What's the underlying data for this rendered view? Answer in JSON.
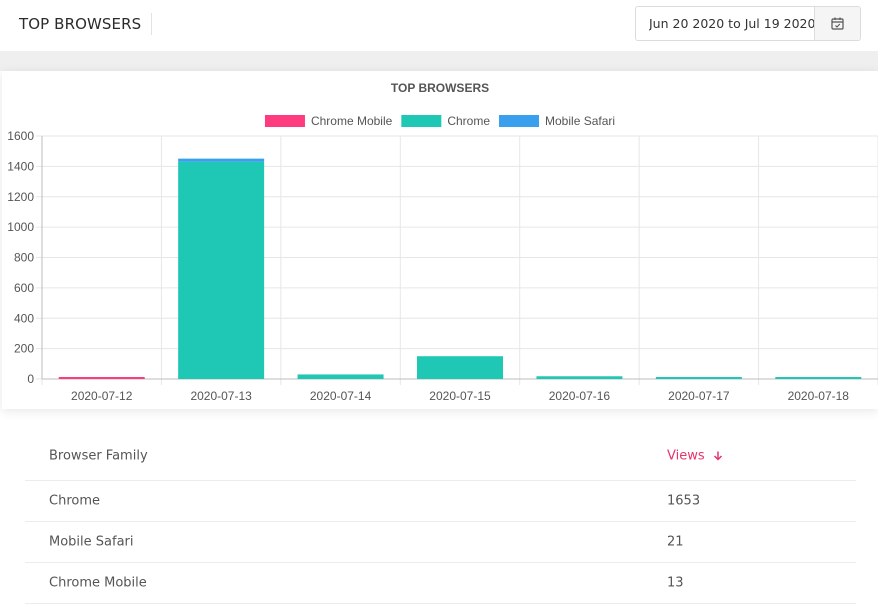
{
  "header": {
    "title": "TOP BROWSERS",
    "date_range_value": "Jun 20 2020 to Jul 19 2020",
    "calendar_icon": "calendar-icon"
  },
  "colors": {
    "Chrome Mobile": "#ff3b7f",
    "Chrome": "#1fc8b4",
    "Mobile Safari": "#3aa0ee"
  },
  "chart_data": {
    "type": "bar",
    "stacked": true,
    "title": "TOP BROWSERS",
    "legend_position": "top",
    "grid": true,
    "categories": [
      "2020-07-12",
      "2020-07-13",
      "2020-07-14",
      "2020-07-15",
      "2020-07-16",
      "2020-07-17",
      "2020-07-18"
    ],
    "series": [
      {
        "name": "Chrome Mobile",
        "values": [
          13,
          0,
          0,
          0,
          0,
          0,
          0
        ]
      },
      {
        "name": "Chrome",
        "values": [
          0,
          1430,
          30,
          150,
          18,
          4,
          12
        ]
      },
      {
        "name": "Mobile Safari",
        "values": [
          0,
          21,
          0,
          0,
          0,
          0,
          0
        ]
      }
    ],
    "ylim": [
      0,
      1600
    ],
    "yticks": [
      0,
      200,
      400,
      600,
      800,
      1000,
      1200,
      1400,
      1600
    ]
  },
  "table": {
    "headers": {
      "name": "Browser Family",
      "views": "Views"
    },
    "rows": [
      {
        "name": "Chrome",
        "views": "1653"
      },
      {
        "name": "Mobile Safari",
        "views": "21"
      },
      {
        "name": "Chrome Mobile",
        "views": "13"
      }
    ]
  }
}
